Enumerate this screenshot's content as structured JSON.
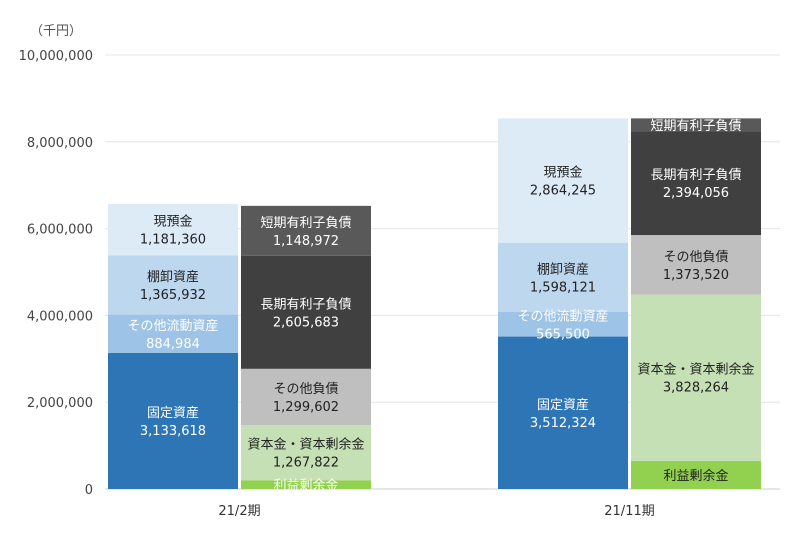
{
  "chart_data": {
    "type": "bar",
    "stacked": true,
    "unit_label": "（千円）",
    "ylim": [
      0,
      10000000
    ],
    "y_ticks": [
      0,
      2000000,
      4000000,
      6000000,
      8000000,
      10000000
    ],
    "y_tick_labels": [
      "0",
      "2,000,000",
      "4,000,000",
      "6,000,000",
      "8,000,000",
      "10,000,000"
    ],
    "grid": true,
    "legend": "none",
    "categories": [
      "21/2期",
      "21/11期"
    ],
    "groups": [
      {
        "category": "21/2期",
        "columns": [
          {
            "side": "assets",
            "segments": [
              {
                "label": "固定資産",
                "value": 3133618,
                "value_label": "3,133,618",
                "color": "#2e75b6",
                "text_color": "#ffffff"
              },
              {
                "label": "その他流動資産",
                "value": 884984,
                "value_label": "884,984",
                "color": "#9dc3e6",
                "text_color": "#ffffff"
              },
              {
                "label": "棚卸資産",
                "value": 1365932,
                "value_label": "1,365,932",
                "color": "#bdd7ee",
                "text_color": "#222222"
              },
              {
                "label": "現預金",
                "value": 1181360,
                "value_label": "1,181,360",
                "color": "#ddebf7",
                "text_color": "#222222"
              }
            ]
          },
          {
            "side": "liabilities",
            "segments": [
              {
                "label": "利益剰余金",
                "value": 202000,
                "value_label": "",
                "color": "#92d050",
                "text_color": "#ffffff"
              },
              {
                "label": "資本金・資本剰余金",
                "value": 1267822,
                "value_label": "1,267,822",
                "color": "#c5e0b4",
                "text_color": "#222222"
              },
              {
                "label": "その他負債",
                "value": 1299602,
                "value_label": "1,299,602",
                "color": "#bfbfbf",
                "text_color": "#222222"
              },
              {
                "label": "長期有利子負債",
                "value": 2605683,
                "value_label": "2,605,683",
                "color": "#404040",
                "text_color": "#ffffff"
              },
              {
                "label": "短期有利子負債",
                "value": 1148972,
                "value_label": "1,148,972",
                "color": "#595959",
                "text_color": "#ffffff"
              }
            ]
          }
        ]
      },
      {
        "category": "21/11期",
        "columns": [
          {
            "side": "assets",
            "segments": [
              {
                "label": "固定資産",
                "value": 3512324,
                "value_label": "3,512,324",
                "color": "#2e75b6",
                "text_color": "#ffffff"
              },
              {
                "label": "その他流動資産",
                "value": 565500,
                "value_label": "565,500",
                "color": "#9dc3e6",
                "text_color": "#ffffff"
              },
              {
                "label": "棚卸資産",
                "value": 1598121,
                "value_label": "1,598,121",
                "color": "#bdd7ee",
                "text_color": "#222222"
              },
              {
                "label": "現預金",
                "value": 2864245,
                "value_label": "2,864,245",
                "color": "#ddebf7",
                "text_color": "#222222"
              }
            ]
          },
          {
            "side": "liabilities",
            "segments": [
              {
                "label": "利益剰余金",
                "value": 650000,
                "value_label": "",
                "color": "#92d050",
                "text_color": "#222222"
              },
              {
                "label": "資本金・資本剰余金",
                "value": 3828264,
                "value_label": "3,828,264",
                "color": "#c5e0b4",
                "text_color": "#222222"
              },
              {
                "label": "その他負債",
                "value": 1373520,
                "value_label": "1,373,520",
                "color": "#bfbfbf",
                "text_color": "#222222"
              },
              {
                "label": "長期有利子負債",
                "value": 2394056,
                "value_label": "2,394,056",
                "color": "#404040",
                "text_color": "#ffffff"
              },
              {
                "label": "短期有利子負債",
                "value": 294000,
                "value_label": "",
                "color": "#595959",
                "text_color": "#ffffff"
              }
            ]
          }
        ]
      }
    ]
  }
}
